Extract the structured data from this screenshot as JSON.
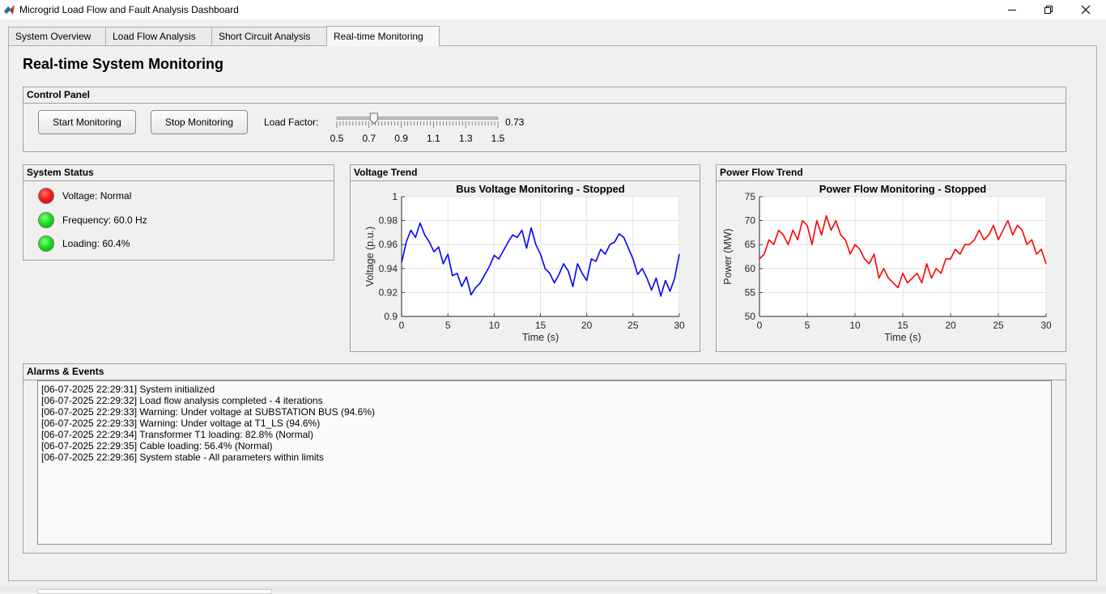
{
  "window": {
    "title": "Microgrid Load Flow and Fault Analysis Dashboard",
    "icons": [
      "matlab-icon",
      "minimize-icon",
      "maximize-icon",
      "close-icon"
    ]
  },
  "tabs": [
    {
      "label": "System Overview",
      "active": false
    },
    {
      "label": "Load Flow Analysis",
      "active": false
    },
    {
      "label": "Short Circuit Analysis",
      "active": false
    },
    {
      "label": "Real-time Monitoring",
      "active": true
    }
  ],
  "page_title": "Real-time System Monitoring",
  "control_panel": {
    "title": "Control Panel",
    "start_label": "Start Monitoring",
    "stop_label": "Stop Monitoring",
    "load_factor_label": "Load Factor:",
    "load_factor_value": 0.73,
    "load_factor_text": "0.73",
    "slider_min": 0.5,
    "slider_max": 1.5,
    "slider_ticks": [
      "0.5",
      "0.7",
      "0.9",
      "1.1",
      "1.3",
      "1.5"
    ]
  },
  "system_status": {
    "title": "System Status",
    "items": [
      {
        "label": "Voltage: Normal",
        "lamp_color": "#ff1a1a"
      },
      {
        "label": "Frequency: 60.0 Hz",
        "lamp_color": "#17e317"
      },
      {
        "label": "Loading: 60.4%",
        "lamp_color": "#17e317"
      }
    ]
  },
  "voltage_trend": {
    "panel_title": "Voltage Trend"
  },
  "power_trend": {
    "panel_title": "Power Flow Trend"
  },
  "alarms": {
    "title": "Alarms & Events",
    "lines": [
      "[06-07-2025 22:29:31] System initialized",
      "[06-07-2025 22:29:32] Load flow analysis completed - 4 iterations",
      "[06-07-2025 22:29:33] Warning: Under voltage at SUBSTATION BUS (94.6%)",
      "[06-07-2025 22:29:33] Warning: Under voltage at T1_LS (94.6%)",
      "[06-07-2025 22:29:34] Transformer T1 loading: 82.8% (Normal)",
      "[06-07-2025 22:29:35] Cable loading: 56.4% (Normal)",
      "[06-07-2025 22:29:36] System stable - All parameters within limits"
    ]
  },
  "chart_data": [
    {
      "type": "line",
      "title": "Bus Voltage Monitoring - Stopped",
      "xlabel": "Time (s)",
      "ylabel": "Voltage (p.u.)",
      "xlim": [
        0,
        30
      ],
      "ylim": [
        0.9,
        1
      ],
      "xticks": [
        "0",
        "5",
        "10",
        "15",
        "20",
        "25",
        "30"
      ],
      "yticks": [
        "0.9",
        "0.92",
        "0.94",
        "0.96",
        "0.98",
        "1"
      ],
      "grid": true,
      "color": "#0000ff",
      "x": [
        0,
        0.5,
        1,
        1.5,
        2,
        2.5,
        3,
        3.5,
        4,
        4.5,
        5,
        5.5,
        6,
        6.5,
        7,
        7.5,
        8,
        8.5,
        9,
        9.5,
        10,
        10.5,
        11,
        11.5,
        12,
        12.5,
        13,
        13.5,
        14,
        14.5,
        15,
        15.5,
        16,
        16.5,
        17,
        17.5,
        18,
        18.5,
        19,
        19.5,
        20,
        20.5,
        21,
        21.5,
        22,
        22.5,
        23,
        23.5,
        24,
        24.5,
        25,
        25.5,
        26,
        26.5,
        27,
        27.5,
        28,
        28.5,
        29,
        29.5,
        30
      ],
      "y": [
        0.945,
        0.962,
        0.972,
        0.966,
        0.978,
        0.968,
        0.962,
        0.954,
        0.958,
        0.944,
        0.952,
        0.934,
        0.936,
        0.925,
        0.933,
        0.918,
        0.924,
        0.928,
        0.935,
        0.942,
        0.951,
        0.948,
        0.955,
        0.962,
        0.968,
        0.966,
        0.972,
        0.957,
        0.974,
        0.96,
        0.952,
        0.94,
        0.936,
        0.928,
        0.935,
        0.944,
        0.938,
        0.925,
        0.944,
        0.936,
        0.93,
        0.948,
        0.946,
        0.956,
        0.952,
        0.96,
        0.962,
        0.969,
        0.966,
        0.957,
        0.948,
        0.935,
        0.94,
        0.932,
        0.922,
        0.932,
        0.917,
        0.93,
        0.921,
        0.932,
        0.952
      ]
    },
    {
      "type": "line",
      "title": "Power Flow Monitoring - Stopped",
      "xlabel": "Time (s)",
      "ylabel": "Power (MW)",
      "xlim": [
        0,
        30
      ],
      "ylim": [
        50,
        75
      ],
      "xticks": [
        "0",
        "5",
        "10",
        "15",
        "20",
        "25",
        "30"
      ],
      "yticks": [
        "50",
        "55",
        "60",
        "65",
        "70",
        "75"
      ],
      "grid": true,
      "color": "#ff0000",
      "x": [
        0,
        0.5,
        1,
        1.5,
        2,
        2.5,
        3,
        3.5,
        4,
        4.5,
        5,
        5.5,
        6,
        6.5,
        7,
        7.5,
        8,
        8.5,
        9,
        9.5,
        10,
        10.5,
        11,
        11.5,
        12,
        12.5,
        13,
        13.5,
        14,
        14.5,
        15,
        15.5,
        16,
        16.5,
        17,
        17.5,
        18,
        18.5,
        19,
        19.5,
        20,
        20.5,
        21,
        21.5,
        22,
        22.5,
        23,
        23.5,
        24,
        24.5,
        25,
        25.5,
        26,
        26.5,
        27,
        27.5,
        28,
        28.5,
        29,
        29.5,
        30
      ],
      "y": [
        62,
        63,
        66,
        65,
        68,
        67,
        65,
        68,
        66,
        70,
        69,
        65,
        70,
        67,
        71,
        68,
        70,
        67,
        66,
        63,
        65,
        64,
        62,
        61,
        63,
        58,
        60,
        58,
        57,
        56,
        59,
        57,
        58,
        59,
        57,
        61,
        58,
        60,
        59,
        62,
        62,
        64,
        63,
        65,
        65,
        66,
        68,
        66,
        67,
        69,
        66,
        68,
        70,
        67,
        69,
        68,
        65,
        66,
        63,
        64,
        61
      ]
    }
  ]
}
